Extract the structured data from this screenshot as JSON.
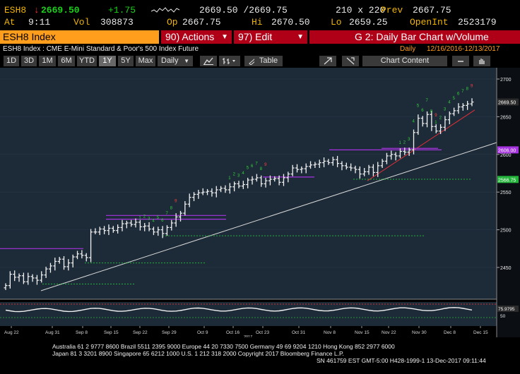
{
  "header": {
    "ticker": "ESH8",
    "arrow": "↓",
    "last": "2669.50",
    "change": "+1.75",
    "bid_ask": "2669.50 /2669.75",
    "size": "210 x 220",
    "prev_label": "Prev",
    "prev": "2667.75",
    "at_label": "At",
    "time": "9:11",
    "vol_label": "Vol",
    "vol": "308873",
    "op_label": "Op",
    "open": "2667.75",
    "hi_label": "Hi",
    "high": "2670.50",
    "lo_label": "Lo",
    "low": "2659.25",
    "oi_label": "OpenInt",
    "open_interest": "2523179"
  },
  "command_bar": {
    "security": "ESH8 Index",
    "actions_label": "90) Actions",
    "edit_label": "97) Edit",
    "chart_title": "G 2: Daily Bar Chart w/Volume"
  },
  "subtitle": {
    "description": "ESH8 Index : CME E-Mini Standard & Poor's 500 Index Future",
    "period": "Daily",
    "range": "12/16/2016-12/13/2017"
  },
  "toolbar": {
    "ranges": [
      "1D",
      "3D",
      "1M",
      "6M",
      "YTD",
      "1Y",
      "5Y",
      "Max"
    ],
    "selected_range": "1Y",
    "frequency": "Daily",
    "table_label": "Table",
    "chart_content_label": "Chart Content"
  },
  "chart_data": {
    "type": "bar",
    "y_ticks": [
      "2700",
      "2650",
      "2600",
      "2550",
      "2500",
      "2450"
    ],
    "x_ticks": [
      "Aug 22",
      "Aug 31",
      "Sep 8",
      "Sep 15",
      "Sep 22",
      "Sep 29",
      "Oct 9",
      "Oct 16",
      "Oct 23",
      "Oct 31",
      "Nov 8",
      "Nov 15",
      "Nov 22",
      "Nov 30",
      "Dec 8",
      "Dec 15"
    ],
    "year_label": "2017",
    "last_price_label": "2669.50",
    "level_labels": [
      "2606.00",
      "2566.75"
    ],
    "indicator_value": "75.9795",
    "indicator_ticks": [
      "50"
    ],
    "levels": {
      "upper": 2606,
      "lower": 2566.75
    },
    "closes": [
      2426,
      2441,
      2437,
      2439,
      2431,
      2438,
      2436,
      2433,
      2440,
      2448,
      2452,
      2458,
      2461,
      2451,
      2456,
      2464,
      2468,
      2466,
      2463,
      2497,
      2497,
      2501,
      2499,
      2502,
      2499,
      2503,
      2508,
      2509,
      2507,
      2510,
      2504,
      2505,
      2501,
      2497,
      2500,
      2495,
      2503,
      2509,
      2517,
      2522,
      2534,
      2543,
      2547,
      2549,
      2550,
      2551,
      2549,
      2553,
      2555,
      2553,
      2557,
      2561,
      2558,
      2560,
      2566,
      2567,
      2569,
      2561,
      2565,
      2567,
      2568,
      2563,
      2569,
      2574,
      2582,
      2580,
      2581,
      2584,
      2586,
      2587,
      2589,
      2591,
      2589,
      2593,
      2588,
      2585,
      2583,
      2582,
      2580,
      2574,
      2577,
      2583,
      2576,
      2585,
      2591,
      2598,
      2600,
      2598,
      2604,
      2603,
      2606,
      2629,
      2648,
      2641,
      2653,
      2637,
      2631,
      2636,
      2646,
      2654,
      2658,
      2663,
      2665,
      2667,
      2669.5
    ]
  },
  "footer": {
    "line1": "Australia 61 2 9777 8600 Brazil 5511 2395 9000 Europe 44 20 7330 7500 Germany 49 69 9204 1210 Hong Kong 852 2977 6000",
    "line2": "Japan 81 3 3201 8900     Singapore 65 6212 1000     U.S. 1 212 318 2000         Copyright 2017 Bloomberg Finance L.P.",
    "line3": "SN 461759 EST  GMT-5:00 H428-1999-1 13-Dec-2017 09:11:44"
  },
  "colors": {
    "chart_bg": "#1d2a37",
    "orange": "#ff9d1c",
    "red_button": "#b00018",
    "green": "#19d219",
    "red": "#ff3030"
  }
}
